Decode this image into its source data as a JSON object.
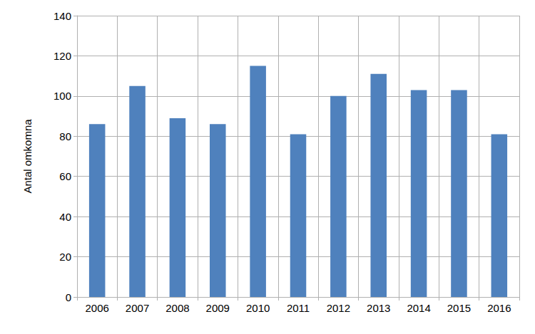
{
  "chart_data": {
    "type": "bar",
    "y_label": "Antal omkomna",
    "categories": [
      "2006",
      "2007",
      "2008",
      "2009",
      "2010",
      "2011",
      "2012",
      "2013",
      "2014",
      "2015",
      "2016"
    ],
    "values": [
      86,
      105,
      89,
      86,
      115,
      81,
      100,
      111,
      103,
      103,
      81
    ],
    "color": "#4f81bd",
    "ylim": [
      0,
      140
    ],
    "yticks": [
      0,
      20,
      40,
      60,
      80,
      100,
      120,
      140
    ],
    "grid": true
  }
}
